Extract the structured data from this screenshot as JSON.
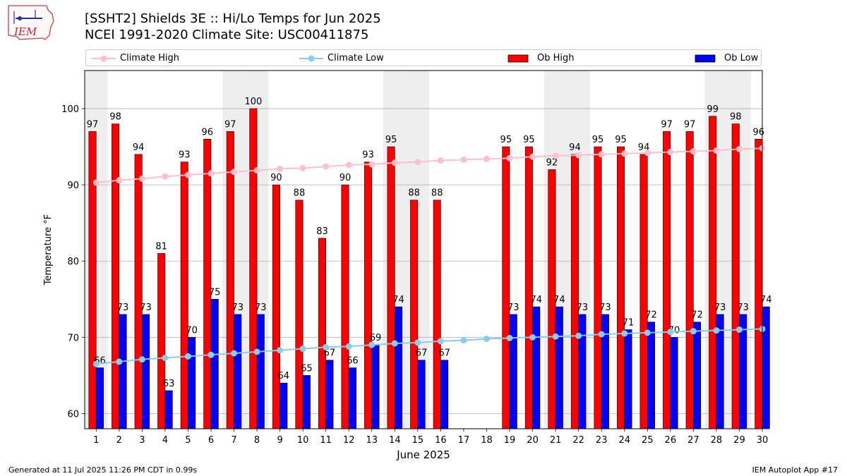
{
  "header": {
    "title_line1": "[SSHT2] Shields 3E :: Hi/Lo Temps for Jun 2025",
    "title_line2": "NCEI 1991-2020 Climate Site: USC00411875"
  },
  "logo_text": "IEM",
  "footer": {
    "left": "Generated at 11 Jul 2025 11:26 PM CDT in 0.99s",
    "right": "IEM Autoplot App #17"
  },
  "colors": {
    "ob_high": "#ff0000",
    "ob_low": "#0000ff",
    "climate_high": "#ffc0cb",
    "climate_low": "#87ceeb",
    "weekend_shade": "#eeeeee",
    "grid": "#b0b0b0"
  },
  "chart_data": {
    "type": "bar",
    "xlabel": "June 2025",
    "ylabel": "Temperature °F",
    "ylim": [
      58,
      105
    ],
    "yticks": [
      60,
      70,
      80,
      90,
      100
    ],
    "grid": true,
    "legend_position": "top",
    "categories": [
      "1",
      "2",
      "3",
      "4",
      "5",
      "6",
      "7",
      "8",
      "9",
      "10",
      "11",
      "12",
      "13",
      "14",
      "15",
      "16",
      "17",
      "18",
      "19",
      "20",
      "21",
      "22",
      "23",
      "24",
      "25",
      "26",
      "27",
      "28",
      "29",
      "30"
    ],
    "shaded_days": [
      1,
      7,
      8,
      14,
      15,
      21,
      22,
      28,
      29
    ],
    "series": [
      {
        "name": "Climate High",
        "kind": "line",
        "values": [
          90.3,
          90.6,
          90.8,
          91.1,
          91.3,
          91.5,
          91.7,
          91.9,
          92.1,
          92.2,
          92.4,
          92.6,
          92.7,
          92.9,
          93.0,
          93.2,
          93.3,
          93.4,
          93.5,
          93.7,
          93.8,
          93.9,
          94.0,
          94.1,
          94.2,
          94.3,
          94.4,
          94.5,
          94.7,
          94.8
        ]
      },
      {
        "name": "Climate Low",
        "kind": "line",
        "values": [
          66.5,
          66.8,
          67.1,
          67.3,
          67.5,
          67.7,
          67.9,
          68.1,
          68.3,
          68.5,
          68.7,
          68.8,
          69.0,
          69.2,
          69.3,
          69.5,
          69.6,
          69.8,
          69.9,
          70.0,
          70.1,
          70.2,
          70.4,
          70.5,
          70.6,
          70.7,
          70.8,
          70.9,
          71.0,
          71.1
        ]
      },
      {
        "name": "Ob High",
        "kind": "bar",
        "values": [
          97,
          98,
          94,
          81,
          93,
          96,
          97,
          100,
          90,
          88,
          83,
          90,
          93,
          95,
          88,
          88,
          null,
          null,
          95,
          95,
          92,
          94,
          95,
          95,
          94,
          97,
          97,
          99,
          98,
          96
        ]
      },
      {
        "name": "Ob Low",
        "kind": "bar",
        "values": [
          66,
          73,
          73,
          63,
          70,
          75,
          73,
          73,
          64,
          65,
          67,
          66,
          69,
          74,
          67,
          67,
          null,
          null,
          73,
          74,
          74,
          73,
          73,
          71,
          72,
          70,
          72,
          73,
          73,
          74
        ]
      }
    ]
  }
}
